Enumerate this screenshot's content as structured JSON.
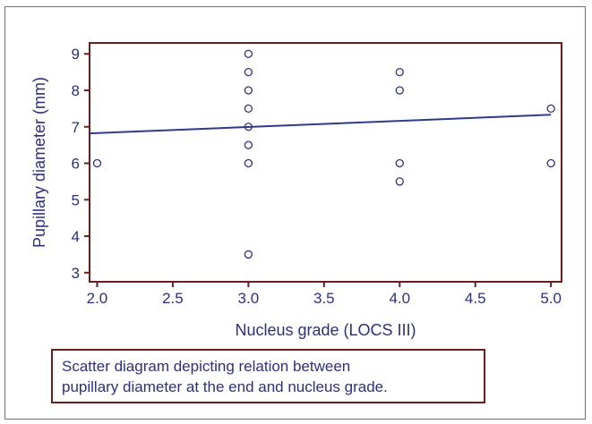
{
  "chart_data": {
    "type": "scatter",
    "title": "",
    "xlabel": "Nucleus grade (LOCS III)",
    "ylabel": "Pupillary diameter (mm)",
    "xlim": [
      1.95,
      5.07
    ],
    "ylim": [
      2.75,
      9.3
    ],
    "x_ticks": [
      2.0,
      2.5,
      3.0,
      3.5,
      4.0,
      4.5,
      5.0
    ],
    "x_tick_labels": [
      "2.0",
      "2.5",
      "3.0",
      "3.5",
      "4.0",
      "4.5",
      "5.0"
    ],
    "y_ticks": [
      3,
      4,
      5,
      6,
      7,
      8,
      9
    ],
    "y_tick_labels": [
      "3",
      "4",
      "5",
      "6",
      "7",
      "8",
      "9"
    ],
    "grid": false,
    "points": [
      {
        "x": 2.0,
        "y": 6.0
      },
      {
        "x": 3.0,
        "y": 9.0
      },
      {
        "x": 3.0,
        "y": 8.5
      },
      {
        "x": 3.0,
        "y": 8.0
      },
      {
        "x": 3.0,
        "y": 7.5
      },
      {
        "x": 3.0,
        "y": 7.0
      },
      {
        "x": 3.0,
        "y": 6.5
      },
      {
        "x": 3.0,
        "y": 6.0
      },
      {
        "x": 3.0,
        "y": 3.5
      },
      {
        "x": 4.0,
        "y": 8.5
      },
      {
        "x": 4.0,
        "y": 8.0
      },
      {
        "x": 4.0,
        "y": 6.0
      },
      {
        "x": 4.0,
        "y": 5.5
      },
      {
        "x": 5.0,
        "y": 7.5
      },
      {
        "x": 5.0,
        "y": 6.0
      }
    ],
    "regression_line": {
      "x": [
        1.95,
        5.0
      ],
      "y": [
        6.82,
        7.33
      ]
    },
    "colors": {
      "axes_frame": "#6b1c1c",
      "marker": "#2e2f7f",
      "line": "#2e3a8c",
      "text": "#2e2f7f"
    }
  },
  "caption": {
    "line1": "Scatter diagram depicting relation between",
    "line2": "pupillary diameter at the end and nucleus grade."
  }
}
